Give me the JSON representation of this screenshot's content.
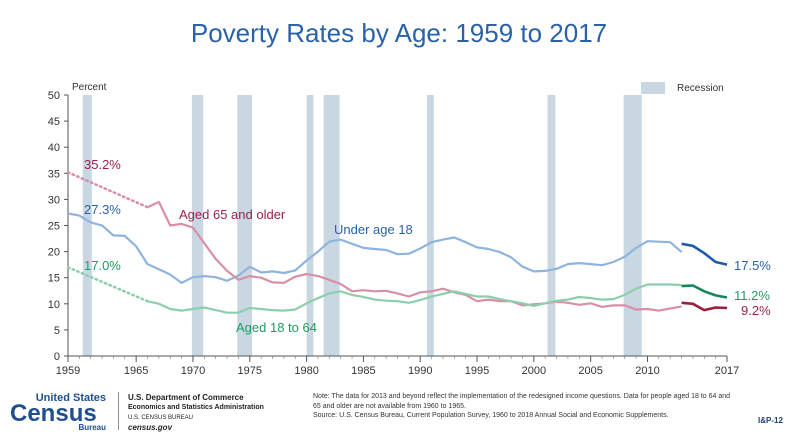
{
  "chart_data": {
    "type": "line",
    "title": "Poverty Rates by Age: 1959 to 2017",
    "ylabel": "Percent",
    "ylim": [
      0,
      50
    ],
    "yticks": [
      0,
      5,
      10,
      15,
      20,
      25,
      30,
      35,
      40,
      45,
      50
    ],
    "xlim": [
      1959,
      2017
    ],
    "xtick_labels": [
      "1959",
      "1965",
      "1970",
      "1975",
      "1980",
      "1985",
      "1990",
      "1995",
      "2000",
      "2005",
      "2010",
      "2017"
    ],
    "xtick_values": [
      1959,
      1965,
      1970,
      1975,
      1980,
      1985,
      1990,
      1995,
      2000,
      2005,
      2010,
      2017
    ],
    "legend": {
      "label": "Recession",
      "position": "top-right"
    },
    "recessions": [
      {
        "start": 1960.3,
        "end": 1961.1
      },
      {
        "start": 1969.9,
        "end": 1970.9
      },
      {
        "start": 1973.9,
        "end": 1975.2
      },
      {
        "start": 1980.0,
        "end": 1980.6
      },
      {
        "start": 1981.5,
        "end": 1982.9
      },
      {
        "start": 1990.6,
        "end": 1991.2
      },
      {
        "start": 2001.2,
        "end": 2001.9
      },
      {
        "start": 2007.9,
        "end": 2009.5
      }
    ],
    "series": [
      {
        "name": "Under age 18",
        "label": "Under age 18",
        "color": "#8fb3df",
        "new_color": "#1f5ba8",
        "start_label": "27.3%",
        "end_label": "17.5%",
        "label_color": "#2a62a8",
        "x": [
          1959,
          1960,
          1961,
          1962,
          1963,
          1964,
          1965,
          1966,
          1967,
          1968,
          1969,
          1970,
          1971,
          1972,
          1973,
          1974,
          1975,
          1976,
          1977,
          1978,
          1979,
          1980,
          1981,
          1982,
          1983,
          1984,
          1985,
          1986,
          1987,
          1988,
          1989,
          1990,
          1991,
          1992,
          1993,
          1994,
          1995,
          1996,
          1997,
          1998,
          1999,
          2000,
          2001,
          2002,
          2003,
          2004,
          2005,
          2006,
          2007,
          2008,
          2009,
          2010,
          2011,
          2012,
          2013
        ],
        "y": [
          27.3,
          26.9,
          25.6,
          25.0,
          23.1,
          23.0,
          21.0,
          17.6,
          16.6,
          15.6,
          14.0,
          15.1,
          15.3,
          15.1,
          14.4,
          15.4,
          17.1,
          16.0,
          16.2,
          15.9,
          16.4,
          18.3,
          20.0,
          21.9,
          22.3,
          21.5,
          20.7,
          20.5,
          20.3,
          19.5,
          19.6,
          20.6,
          21.8,
          22.3,
          22.7,
          21.8,
          20.8,
          20.5,
          19.9,
          18.9,
          17.1,
          16.2,
          16.3,
          16.7,
          17.6,
          17.8,
          17.6,
          17.4,
          18.0,
          19.0,
          20.7,
          22.0,
          21.9,
          21.8,
          19.9
        ],
        "new_x": [
          2013,
          2014,
          2015,
          2016,
          2017
        ],
        "new_y": [
          21.5,
          21.1,
          19.7,
          18.0,
          17.5
        ]
      },
      {
        "name": "Aged 65 and older",
        "label": "Aged 65 and older",
        "color": "#d98fa5",
        "new_color": "#9e1d3a",
        "start_label": "35.2%",
        "end_label": "9.2%",
        "label_color": "#9b2148",
        "estimated_x": [
          1959,
          1966
        ],
        "estimated_y": [
          35.2,
          28.5
        ],
        "x": [
          1966,
          1967,
          1968,
          1969,
          1970,
          1971,
          1972,
          1973,
          1974,
          1975,
          1976,
          1977,
          1978,
          1979,
          1980,
          1981,
          1982,
          1983,
          1984,
          1985,
          1986,
          1987,
          1988,
          1989,
          1990,
          1991,
          1992,
          1993,
          1994,
          1995,
          1996,
          1997,
          1998,
          1999,
          2000,
          2001,
          2002,
          2003,
          2004,
          2005,
          2006,
          2007,
          2008,
          2009,
          2010,
          2011,
          2012,
          2013
        ],
        "y": [
          28.5,
          29.5,
          25.0,
          25.3,
          24.6,
          21.6,
          18.6,
          16.3,
          14.6,
          15.3,
          15.0,
          14.1,
          14.0,
          15.2,
          15.7,
          15.3,
          14.6,
          13.8,
          12.4,
          12.6,
          12.4,
          12.5,
          12.0,
          11.4,
          12.2,
          12.4,
          12.9,
          12.2,
          11.7,
          10.5,
          10.8,
          10.5,
          10.5,
          9.7,
          9.9,
          10.1,
          10.4,
          10.2,
          9.8,
          10.1,
          9.4,
          9.7,
          9.7,
          8.9,
          9.0,
          8.7,
          9.1,
          9.5
        ],
        "new_x": [
          2013,
          2014,
          2015,
          2016,
          2017
        ],
        "new_y": [
          10.2,
          10.0,
          8.8,
          9.3,
          9.2
        ]
      },
      {
        "name": "Aged 18 to 64",
        "label": "Aged 18 to 64",
        "color": "#8ccfab",
        "new_color": "#14875a",
        "start_label": "17.0%",
        "end_label": "11.2%",
        "label_color": "#1e9c60",
        "estimated_x": [
          1959,
          1966
        ],
        "estimated_y": [
          17.0,
          10.5
        ],
        "x": [
          1966,
          1967,
          1968,
          1969,
          1970,
          1971,
          1972,
          1973,
          1974,
          1975,
          1976,
          1977,
          1978,
          1979,
          1980,
          1981,
          1982,
          1983,
          1984,
          1985,
          1986,
          1987,
          1988,
          1989,
          1990,
          1991,
          1992,
          1993,
          1994,
          1995,
          1996,
          1997,
          1998,
          1999,
          2000,
          2001,
          2002,
          2003,
          2004,
          2005,
          2006,
          2007,
          2008,
          2009,
          2010,
          2011,
          2012,
          2013
        ],
        "y": [
          10.5,
          10.0,
          9.0,
          8.7,
          9.0,
          9.3,
          8.8,
          8.3,
          8.3,
          9.2,
          9.0,
          8.8,
          8.7,
          8.9,
          10.1,
          11.1,
          12.0,
          12.4,
          11.7,
          11.3,
          10.8,
          10.6,
          10.5,
          10.2,
          10.7,
          11.4,
          11.9,
          12.4,
          11.9,
          11.4,
          11.4,
          10.9,
          10.5,
          10.1,
          9.6,
          10.1,
          10.6,
          10.8,
          11.3,
          11.1,
          10.8,
          10.9,
          11.7,
          12.9,
          13.7,
          13.7,
          13.7,
          13.6
        ],
        "new_x": [
          2013,
          2014,
          2015,
          2016,
          2017
        ],
        "new_y": [
          13.4,
          13.5,
          12.4,
          11.6,
          11.2
        ]
      }
    ]
  },
  "footer": {
    "logo_top": "United States",
    "logo_main": "Census",
    "logo_bureau": "Bureau",
    "dept_line1": "U.S. Department of Commerce",
    "dept_line2": "Economics and Statistics Administration",
    "dept_line3": "U.S. CENSUS BUREAU",
    "dept_line4": "census.gov",
    "note": "Note: The data for 2013 and beyond reflect the implementation of the redesigned income questions. Data for people aged 18 to 64 and 65 and older are not available from 1960 to 1965.",
    "source": "Source: U.S. Census Bureau, Current Population Survey, 1960 to 2018 Annual Social and Economic Supplements.",
    "code": "I&P-12"
  }
}
